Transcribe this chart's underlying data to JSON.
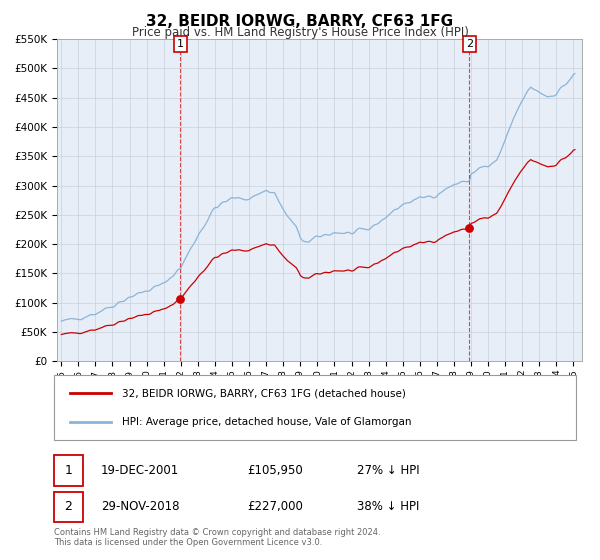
{
  "title": "32, BEIDR IORWG, BARRY, CF63 1FG",
  "subtitle": "Price paid vs. HM Land Registry's House Price Index (HPI)",
  "hpi_label": "HPI: Average price, detached house, Vale of Glamorgan",
  "property_label": "32, BEIDR IORWG, BARRY, CF63 1FG (detached house)",
  "ylim": [
    0,
    550000
  ],
  "yticks": [
    0,
    50000,
    100000,
    150000,
    200000,
    250000,
    300000,
    350000,
    400000,
    450000,
    500000,
    550000
  ],
  "xlim_start": 1994.75,
  "xlim_end": 2025.5,
  "xticks": [
    1995,
    1996,
    1997,
    1998,
    1999,
    2000,
    2001,
    2002,
    2003,
    2004,
    2005,
    2006,
    2007,
    2008,
    2009,
    2010,
    2011,
    2012,
    2013,
    2014,
    2015,
    2016,
    2017,
    2018,
    2019,
    2020,
    2021,
    2022,
    2023,
    2024,
    2025
  ],
  "sale1_x": 2001.97,
  "sale1_y": 105950,
  "sale2_x": 2018.91,
  "sale2_y": 227000,
  "annotation1_date": "19-DEC-2001",
  "annotation1_price": "£105,950",
  "annotation1_hpi": "27% ↓ HPI",
  "annotation2_date": "29-NOV-2018",
  "annotation2_price": "£227,000",
  "annotation2_hpi": "38% ↓ HPI",
  "hpi_color": "#8ab4d8",
  "property_color": "#cc0000",
  "vline_color": "#cc0000",
  "grid_color": "#c8d0dc",
  "bg_color": "#e8eef8",
  "footnote": "Contains HM Land Registry data © Crown copyright and database right 2024.\nThis data is licensed under the Open Government Licence v3.0."
}
